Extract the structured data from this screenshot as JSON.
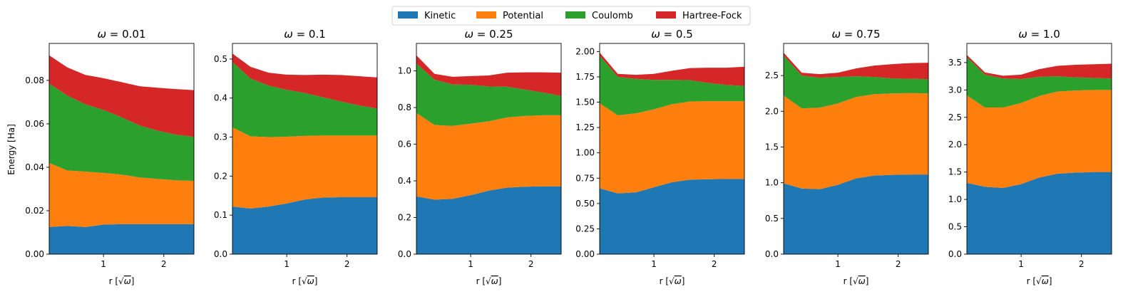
{
  "chart_data": {
    "type": "area",
    "stacked": true,
    "legend": {
      "placement": "top-center",
      "entries": [
        "Kinetic",
        "Potential",
        "Coulomb",
        "Hartree-Fock"
      ]
    },
    "colors": {
      "Kinetic": "#1f77b4",
      "Potential": "#ff7f0e",
      "Coulomb": "#2ca02c",
      "Hartree-Fock": "#d62728"
    },
    "xlabel_prefix": "r [",
    "xlabel_sqrt": "√",
    "xlabel_var": "ω",
    "xlabel_suffix": "]",
    "ylabel": "Energy [Ha]",
    "x": [
      0.1,
      0.4,
      0.7,
      1.0,
      1.3,
      1.6,
      1.9,
      2.2,
      2.5
    ],
    "xlim": [
      0.1,
      2.5
    ],
    "xticks": [
      1,
      2
    ],
    "panels": [
      {
        "title_var": "ω",
        "title_value": "0.01",
        "ylim": [
          0,
          0.097
        ],
        "yticks": [
          "0.00",
          "0.02",
          "0.04",
          "0.06",
          "0.08"
        ],
        "ytick_values": [
          0,
          0.02,
          0.04,
          0.06,
          0.08
        ],
        "series": [
          {
            "name": "Kinetic",
            "values": [
              0.0125,
              0.013,
              0.0125,
              0.0136,
              0.0138,
              0.0138,
              0.0138,
              0.0138,
              0.0138
            ]
          },
          {
            "name": "Potential",
            "values": [
              0.0295,
              0.0255,
              0.0255,
              0.0238,
              0.0228,
              0.0215,
              0.0208,
              0.0202,
              0.0199
            ]
          },
          {
            "name": "Coulomb",
            "values": [
              0.0365,
              0.0345,
              0.031,
              0.029,
              0.0264,
              0.0239,
              0.0222,
              0.021,
              0.0203
            ]
          },
          {
            "name": "Hartree-Fock",
            "values": [
              0.013,
              0.013,
              0.0135,
              0.0146,
              0.0162,
              0.0181,
              0.0198,
              0.021,
              0.0215
            ]
          }
        ]
      },
      {
        "title_var": "ω",
        "title_value": "0.1",
        "ylim": [
          0,
          0.54
        ],
        "yticks": [
          "0.0",
          "0.1",
          "0.2",
          "0.3",
          "0.4",
          "0.5"
        ],
        "ytick_values": [
          0,
          0.1,
          0.2,
          0.3,
          0.4,
          0.5
        ],
        "series": [
          {
            "name": "Kinetic",
            "values": [
              0.122,
              0.117,
              0.122,
              0.13,
              0.14,
              0.145,
              0.146,
              0.146,
              0.146
            ]
          },
          {
            "name": "Potential",
            "values": [
              0.203,
              0.185,
              0.178,
              0.171,
              0.163,
              0.159,
              0.158,
              0.158,
              0.158
            ]
          },
          {
            "name": "Coulomb",
            "values": [
              0.167,
              0.148,
              0.132,
              0.12,
              0.11,
              0.098,
              0.087,
              0.077,
              0.069
            ]
          },
          {
            "name": "Hartree-Fock",
            "values": [
              0.022,
              0.03,
              0.033,
              0.039,
              0.046,
              0.058,
              0.068,
              0.075,
              0.08
            ]
          }
        ]
      },
      {
        "title_var": "ω",
        "title_value": "0.25",
        "ylim": [
          0,
          1.15
        ],
        "yticks": [
          "0.0",
          "0.2",
          "0.4",
          "0.6",
          "0.8",
          "1.0"
        ],
        "ytick_values": [
          0,
          0.2,
          0.4,
          0.6,
          0.8,
          1.0
        ],
        "series": [
          {
            "name": "Kinetic",
            "values": [
              0.315,
              0.297,
              0.302,
              0.322,
              0.347,
              0.363,
              0.368,
              0.37,
              0.37
            ]
          },
          {
            "name": "Potential",
            "values": [
              0.455,
              0.408,
              0.398,
              0.39,
              0.378,
              0.383,
              0.386,
              0.388,
              0.388
            ]
          },
          {
            "name": "Coulomb",
            "values": [
              0.27,
              0.247,
              0.226,
              0.212,
              0.19,
              0.168,
              0.144,
              0.124,
              0.105
            ]
          },
          {
            "name": "Hartree-Fock",
            "values": [
              0.045,
              0.032,
              0.042,
              0.048,
              0.06,
              0.076,
              0.094,
              0.11,
              0.127
            ]
          }
        ]
      },
      {
        "title_var": "ω",
        "title_value": "0.5",
        "ylim": [
          0,
          2.08
        ],
        "yticks": [
          "0.00",
          "0.25",
          "0.50",
          "0.75",
          "1.00",
          "1.25",
          "1.50",
          "1.75",
          "2.00"
        ],
        "ytick_values": [
          0,
          0.25,
          0.5,
          0.75,
          1.0,
          1.25,
          1.5,
          1.75,
          2.0
        ],
        "series": [
          {
            "name": "Kinetic",
            "values": [
              0.65,
              0.6,
              0.61,
              0.66,
              0.71,
              0.735,
              0.74,
              0.742,
              0.742
            ]
          },
          {
            "name": "Potential",
            "values": [
              0.84,
              0.77,
              0.78,
              0.77,
              0.77,
              0.772,
              0.77,
              0.768,
              0.768
            ]
          },
          {
            "name": "Coulomb",
            "values": [
              0.47,
              0.38,
              0.34,
              0.29,
              0.24,
              0.21,
              0.18,
              0.16,
              0.15
            ]
          },
          {
            "name": "Hartree-Fock",
            "values": [
              0.03,
              0.03,
              0.04,
              0.06,
              0.09,
              0.12,
              0.15,
              0.17,
              0.19
            ]
          }
        ]
      },
      {
        "title_var": "ω",
        "title_value": "0.75",
        "ylim": [
          0,
          2.95
        ],
        "yticks": [
          "0.0",
          "0.5",
          "1.0",
          "1.5",
          "2.0",
          "2.5"
        ],
        "ytick_values": [
          0,
          0.5,
          1.0,
          1.5,
          2.0,
          2.5
        ],
        "series": [
          {
            "name": "Kinetic",
            "values": [
              0.99,
              0.92,
              0.91,
              0.97,
              1.06,
              1.1,
              1.11,
              1.115,
              1.115
            ]
          },
          {
            "name": "Potential",
            "values": [
              1.23,
              1.12,
              1.14,
              1.14,
              1.14,
              1.14,
              1.14,
              1.14,
              1.135
            ]
          },
          {
            "name": "Coulomb",
            "values": [
              0.56,
              0.46,
              0.42,
              0.37,
              0.29,
              0.24,
              0.21,
              0.2,
              0.2
            ]
          },
          {
            "name": "Hartree-Fock",
            "values": [
              0.04,
              0.04,
              0.05,
              0.06,
              0.11,
              0.16,
              0.2,
              0.22,
              0.23
            ]
          }
        ]
      },
      {
        "title_var": "ω",
        "title_value": "1.0",
        "ylim": [
          0,
          3.85
        ],
        "yticks": [
          "0.0",
          "0.5",
          "1.0",
          "1.5",
          "2.0",
          "2.5",
          "3.0",
          "3.5"
        ],
        "ytick_values": [
          0,
          0.5,
          1.0,
          1.5,
          2.0,
          2.5,
          3.0,
          3.5
        ],
        "series": [
          {
            "name": "Kinetic",
            "values": [
              1.3,
              1.23,
              1.21,
              1.28,
              1.4,
              1.47,
              1.49,
              1.5,
              1.5
            ]
          },
          {
            "name": "Potential",
            "values": [
              1.6,
              1.45,
              1.47,
              1.48,
              1.49,
              1.5,
              1.5,
              1.5,
              1.5
            ]
          },
          {
            "name": "Coulomb",
            "values": [
              0.7,
              0.6,
              0.53,
              0.44,
              0.35,
              0.28,
              0.24,
              0.22,
              0.21
            ]
          },
          {
            "name": "Hartree-Fock",
            "values": [
              0.04,
              0.04,
              0.05,
              0.08,
              0.14,
              0.19,
              0.23,
              0.25,
              0.27
            ]
          }
        ]
      }
    ]
  }
}
